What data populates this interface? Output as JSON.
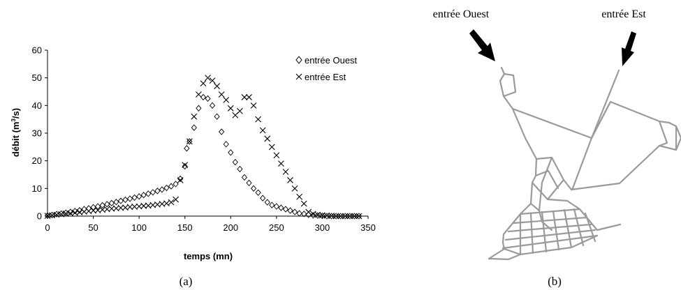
{
  "chart_data": {
    "type": "scatter",
    "title": "",
    "xlabel": "temps (mn)",
    "ylabel_main": "débit (m",
    "ylabel_sup": "3",
    "ylabel_tail": "/s)",
    "xlim": [
      0,
      350
    ],
    "ylim": [
      0,
      60
    ],
    "xticks": [
      "0",
      "50",
      "100",
      "150",
      "200",
      "250",
      "300",
      "350"
    ],
    "yticks": [
      "0",
      "10",
      "20",
      "30",
      "40",
      "50",
      "60"
    ],
    "grid": false,
    "legend_position": "top-right",
    "series": [
      {
        "name": "entrée Ouest",
        "marker": "diamond",
        "x": [
          0,
          5,
          10,
          15,
          20,
          25,
          30,
          35,
          40,
          45,
          50,
          55,
          60,
          65,
          70,
          75,
          80,
          85,
          90,
          95,
          100,
          105,
          110,
          115,
          120,
          125,
          130,
          135,
          140,
          145,
          150,
          152,
          155,
          160,
          165,
          170,
          175,
          180,
          185,
          190,
          195,
          200,
          205,
          210,
          215,
          220,
          225,
          230,
          235,
          240,
          245,
          250,
          255,
          260,
          265,
          270,
          275,
          280,
          285,
          290,
          295,
          300,
          305,
          310,
          315,
          320,
          325,
          330,
          335,
          340
        ],
        "y": [
          0.2,
          0.4,
          0.7,
          0.9,
          1.2,
          1.5,
          1.8,
          2.1,
          2.5,
          2.8,
          3.2,
          3.5,
          3.9,
          4.3,
          4.7,
          5.1,
          5.5,
          5.9,
          6.3,
          6.7,
          7.1,
          7.6,
          8.1,
          8.6,
          9.1,
          9.6,
          10.2,
          10.8,
          11.6,
          13.5,
          18,
          24.5,
          27,
          32,
          39,
          43,
          42.5,
          40,
          36,
          30.5,
          26,
          23,
          19.5,
          17,
          14,
          12,
          10,
          8.5,
          6.5,
          5,
          4,
          3.5,
          3,
          2.5,
          2,
          1.5,
          1,
          0.8,
          0.5,
          0.3,
          0.2,
          0.1,
          0,
          0,
          0,
          0,
          0,
          0,
          0,
          0
        ]
      },
      {
        "name": "entrée Est",
        "marker": "cross",
        "x": [
          0,
          5,
          10,
          15,
          20,
          25,
          30,
          35,
          40,
          45,
          50,
          55,
          60,
          65,
          70,
          75,
          80,
          85,
          90,
          95,
          100,
          105,
          110,
          115,
          120,
          125,
          130,
          135,
          140,
          145,
          150,
          155,
          160,
          165,
          170,
          175,
          180,
          185,
          190,
          195,
          200,
          205,
          210,
          215,
          220,
          225,
          230,
          235,
          240,
          245,
          250,
          255,
          260,
          265,
          270,
          275,
          280,
          285,
          290,
          295,
          300,
          305,
          310,
          315,
          320,
          325,
          330,
          335,
          340
        ],
        "y": [
          0.1,
          0.3,
          0.5,
          0.7,
          0.9,
          1,
          1.2,
          1.4,
          1.6,
          1.8,
          2,
          2.1,
          2.3,
          2.5,
          2.7,
          2.8,
          3,
          3.1,
          3.3,
          3.4,
          3.5,
          3.7,
          3.8,
          4,
          4.2,
          4.4,
          4.6,
          5,
          6,
          13,
          18.5,
          27,
          36,
          44,
          48,
          50,
          49,
          47,
          44,
          42,
          39,
          36.5,
          38,
          43,
          43,
          40,
          35,
          31,
          28,
          25,
          22,
          19,
          16,
          13,
          10,
          7,
          4.5,
          1.5,
          0.8,
          0.5,
          0.3,
          0.2,
          0.1,
          0,
          0,
          0,
          0,
          0,
          0
        ]
      }
    ]
  },
  "captions": {
    "a": "(a)",
    "b": "(b)"
  },
  "map": {
    "entry_west_label": "entrée Ouest",
    "entry_east_label": "entrée Est"
  },
  "colors": {
    "axis": "#000000",
    "roads": "#9a9a9a",
    "arrow": "#000000"
  }
}
